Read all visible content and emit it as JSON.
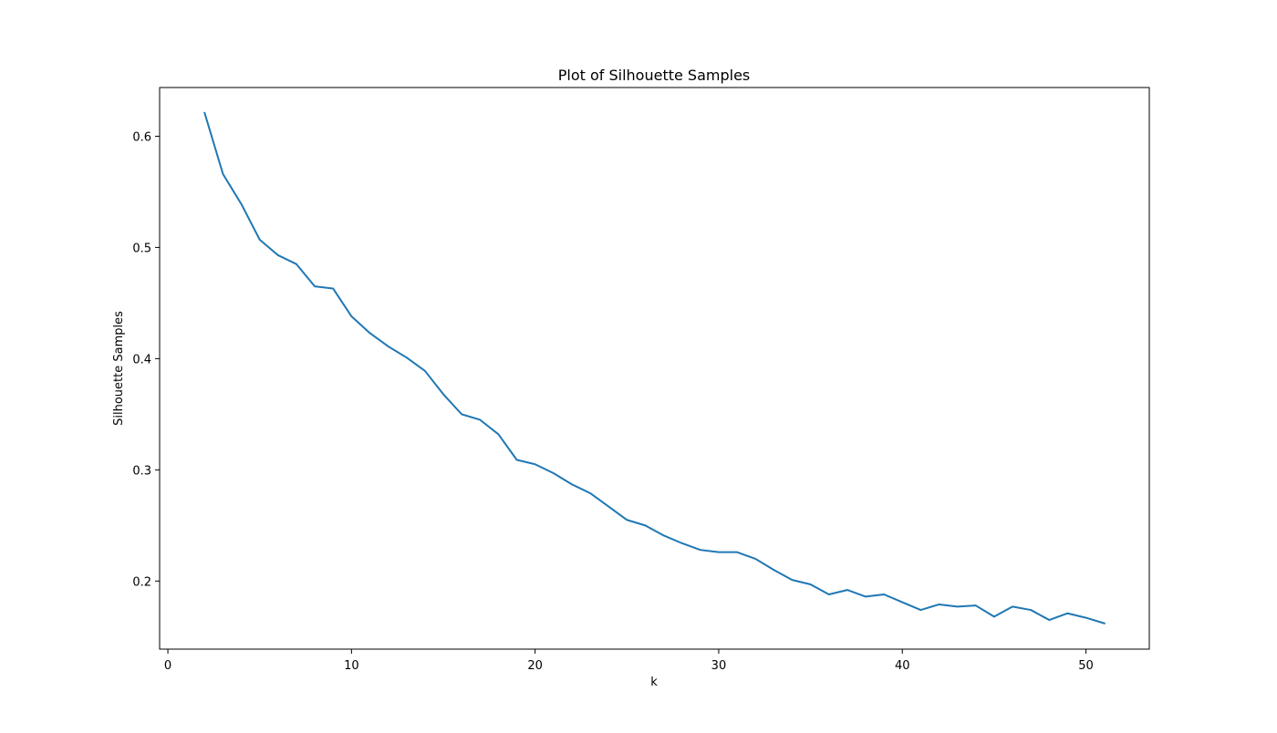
{
  "chart_data": {
    "type": "line",
    "title": "Plot of Silhouette Samples",
    "xlabel": "k",
    "ylabel": "Silhouette Samples",
    "xlim": [
      -0.45,
      53.45
    ],
    "ylim": [
      0.1388,
      0.6438
    ],
    "xticks": [
      0,
      10,
      20,
      30,
      40,
      50
    ],
    "xtick_labels": [
      "0",
      "10",
      "20",
      "30",
      "40",
      "50"
    ],
    "yticks": [
      0.2,
      0.3,
      0.4,
      0.5,
      0.6
    ],
    "ytick_labels": [
      "0.2",
      "0.3",
      "0.4",
      "0.5",
      "0.6"
    ],
    "grid": false,
    "series": [
      {
        "color": "#1f77b4",
        "x": [
          2,
          3,
          4,
          5,
          6,
          7,
          8,
          9,
          10,
          11,
          12,
          13,
          14,
          15,
          16,
          17,
          18,
          19,
          20,
          21,
          22,
          23,
          24,
          25,
          26,
          27,
          28,
          29,
          30,
          31,
          32,
          33,
          34,
          35,
          36,
          37,
          38,
          39,
          40,
          41,
          42,
          43,
          44,
          45,
          46,
          47,
          48,
          49,
          50,
          51
        ],
        "y": [
          0.621,
          0.566,
          0.539,
          0.507,
          0.493,
          0.485,
          0.465,
          0.463,
          0.438,
          0.423,
          0.411,
          0.401,
          0.389,
          0.368,
          0.35,
          0.345,
          0.332,
          0.309,
          0.305,
          0.297,
          0.287,
          0.279,
          0.267,
          0.255,
          0.25,
          0.241,
          0.234,
          0.228,
          0.226,
          0.226,
          0.22,
          0.21,
          0.201,
          0.197,
          0.188,
          0.192,
          0.186,
          0.188,
          0.181,
          0.174,
          0.179,
          0.177,
          0.178,
          0.168,
          0.177,
          0.174,
          0.165,
          0.171,
          0.167,
          0.162
        ]
      }
    ]
  }
}
